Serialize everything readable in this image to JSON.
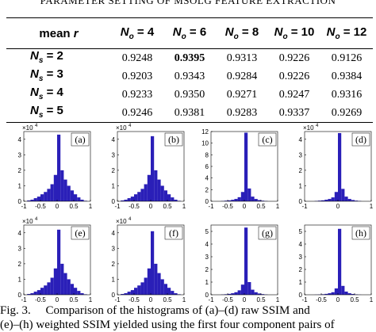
{
  "table": {
    "caption": "PARAMETER SETTING OF MSOLG FEATURE EXTRACTION",
    "corner": {
      "text": "mean",
      "var": "r"
    },
    "columns": [
      {
        "symbol": "N",
        "sub": "o",
        "rest": " = 4"
      },
      {
        "symbol": "N",
        "sub": "o",
        "rest": " = 6"
      },
      {
        "symbol": "N",
        "sub": "o",
        "rest": " = 8"
      },
      {
        "symbol": "N",
        "sub": "o",
        "rest": " = 10"
      },
      {
        "symbol": "N",
        "sub": "o",
        "rest": " = 12"
      }
    ],
    "rows": [
      {
        "symbol": "N",
        "sub": "s",
        "rest": " = 2",
        "values": [
          "0.9248",
          "0.9395",
          "0.9313",
          "0.9226",
          "0.9126"
        ]
      },
      {
        "symbol": "N",
        "sub": "s",
        "rest": " = 3",
        "values": [
          "0.9203",
          "0.9343",
          "0.9284",
          "0.9226",
          "0.9384"
        ]
      },
      {
        "symbol": "N",
        "sub": "s",
        "rest": " = 4",
        "values": [
          "0.9233",
          "0.9350",
          "0.9271",
          "0.9247",
          "0.9316"
        ]
      },
      {
        "symbol": "N",
        "sub": "s",
        "rest": " = 5",
        "values": [
          "0.9246",
          "0.9381",
          "0.9283",
          "0.9337",
          "0.9269"
        ]
      }
    ],
    "highlight": {
      "row": 0,
      "col": 1
    }
  },
  "figure": {
    "color": "#2a1fb8",
    "panels": [
      {
        "label": "(a)",
        "multiplier": {
          "base": "×10",
          "exp": "4"
        },
        "xlim": [
          -1,
          1
        ],
        "xticks": [
          -1,
          -0.5,
          0,
          0.5,
          1
        ],
        "ylim": [
          0,
          4.5
        ],
        "yticks": [
          0,
          1,
          2,
          3,
          4
        ],
        "bins": [
          -1,
          -0.9,
          -0.8,
          -0.7,
          -0.6,
          -0.5,
          -0.4,
          -0.3,
          -0.2,
          -0.1,
          0,
          0.1,
          0.2,
          0.3,
          0.4,
          0.5,
          0.6,
          0.7,
          0.8,
          0.9,
          1
        ],
        "counts": [
          0,
          0.05,
          0.1,
          0.2,
          0.3,
          0.45,
          0.6,
          0.8,
          1.1,
          1.7,
          4.3,
          2.0,
          1.4,
          1.0,
          0.7,
          0.45,
          0.25,
          0.1,
          0.03,
          0
        ]
      },
      {
        "label": "(b)",
        "multiplier": {
          "base": "×10",
          "exp": "4"
        },
        "xlim": [
          -1,
          1
        ],
        "xticks": [
          -1,
          -0.5,
          0,
          0.5,
          1
        ],
        "ylim": [
          0,
          4.5
        ],
        "yticks": [
          0,
          1,
          2,
          3,
          4
        ],
        "bins": [
          -1,
          -0.9,
          -0.8,
          -0.7,
          -0.6,
          -0.5,
          -0.4,
          -0.3,
          -0.2,
          -0.1,
          0,
          0.1,
          0.2,
          0.3,
          0.4,
          0.5,
          0.6,
          0.7,
          0.8,
          0.9,
          1
        ],
        "counts": [
          0,
          0.05,
          0.1,
          0.2,
          0.3,
          0.45,
          0.6,
          0.8,
          1.1,
          1.7,
          4.2,
          2.0,
          1.4,
          1.0,
          0.7,
          0.45,
          0.25,
          0.1,
          0.03,
          0
        ]
      },
      {
        "label": "(c)",
        "xlim": [
          -1,
          1
        ],
        "xticks": [
          -1,
          -0.5,
          0,
          0.5,
          1
        ],
        "ylim": [
          0,
          12
        ],
        "yticks": [
          0,
          2,
          4,
          6,
          8,
          10,
          12
        ],
        "bins": [
          -1,
          -0.9,
          -0.8,
          -0.7,
          -0.6,
          -0.5,
          -0.4,
          -0.3,
          -0.2,
          -0.1,
          0,
          0.1,
          0.2,
          0.3,
          0.4,
          0.5,
          0.6,
          0.7,
          0.8,
          0.9,
          1
        ],
        "counts": [
          0,
          0,
          0,
          0.05,
          0.1,
          0.15,
          0.25,
          0.4,
          0.7,
          1.6,
          11.8,
          2.2,
          0.8,
          0.4,
          0.2,
          0.1,
          0.05,
          0,
          0,
          0
        ]
      },
      {
        "label": "(d)",
        "multiplier": {
          "base": "×10",
          "exp": "4"
        },
        "xlim": [
          -1,
          1
        ],
        "xticks": [
          -1,
          0,
          1
        ],
        "ylim": [
          0,
          4.5
        ],
        "yticks": [
          0,
          1,
          2,
          3,
          4
        ],
        "bins": [
          -1,
          -0.9,
          -0.8,
          -0.7,
          -0.6,
          -0.5,
          -0.4,
          -0.3,
          -0.2,
          -0.1,
          0,
          0.1,
          0.2,
          0.3,
          0.4,
          0.5,
          0.6,
          0.7,
          0.8,
          0.9,
          1
        ],
        "counts": [
          0,
          0,
          0,
          0.02,
          0.04,
          0.06,
          0.1,
          0.15,
          0.25,
          0.6,
          4.4,
          0.8,
          0.3,
          0.15,
          0.08,
          0.04,
          0.02,
          0,
          0,
          0
        ]
      },
      {
        "label": "(e)",
        "multiplier": {
          "base": "×10",
          "exp": "4"
        },
        "xlim": [
          -1,
          1
        ],
        "xticks": [
          -1,
          -0.5,
          0,
          0.5,
          1
        ],
        "ylim": [
          0,
          4.5
        ],
        "yticks": [
          0,
          1,
          2,
          3,
          4
        ],
        "bins": [
          -1,
          -0.9,
          -0.8,
          -0.7,
          -0.6,
          -0.5,
          -0.4,
          -0.3,
          -0.2,
          -0.1,
          0,
          0.1,
          0.2,
          0.3,
          0.4,
          0.5,
          0.6,
          0.7,
          0.8,
          0.9,
          1
        ],
        "counts": [
          0,
          0.05,
          0.1,
          0.2,
          0.3,
          0.45,
          0.6,
          0.8,
          1.1,
          1.7,
          4.2,
          2.0,
          1.4,
          1.0,
          0.7,
          0.45,
          0.25,
          0.1,
          0.03,
          0
        ]
      },
      {
        "label": "(f)",
        "multiplier": {
          "base": "×10",
          "exp": "4"
        },
        "xlim": [
          -1,
          1
        ],
        "xticks": [
          -1,
          -0.5,
          0,
          0.5,
          1
        ],
        "ylim": [
          0,
          4.5
        ],
        "yticks": [
          0,
          1,
          2,
          3,
          4
        ],
        "bins": [
          -1,
          -0.9,
          -0.8,
          -0.7,
          -0.6,
          -0.5,
          -0.4,
          -0.3,
          -0.2,
          -0.1,
          0,
          0.1,
          0.2,
          0.3,
          0.4,
          0.5,
          0.6,
          0.7,
          0.8,
          0.9,
          1
        ],
        "counts": [
          0,
          0.05,
          0.1,
          0.2,
          0.3,
          0.45,
          0.6,
          0.8,
          1.1,
          1.7,
          4.1,
          2.0,
          1.4,
          1.0,
          0.7,
          0.45,
          0.25,
          0.1,
          0.03,
          0
        ]
      },
      {
        "label": "(g)",
        "xlim": [
          -1,
          1
        ],
        "xticks": [
          -1,
          -0.5,
          0,
          0.5,
          1
        ],
        "ylim": [
          0,
          5.5
        ],
        "yticks": [
          0,
          1,
          2,
          3,
          4,
          5
        ],
        "bins": [
          -1,
          -0.9,
          -0.8,
          -0.7,
          -0.6,
          -0.5,
          -0.4,
          -0.3,
          -0.2,
          -0.1,
          0,
          0.1,
          0.2,
          0.3,
          0.4,
          0.5,
          0.6,
          0.7,
          0.8,
          0.9,
          1
        ],
        "counts": [
          0,
          0,
          0,
          0.02,
          0.04,
          0.07,
          0.12,
          0.2,
          0.35,
          0.8,
          5.3,
          1.0,
          0.4,
          0.2,
          0.1,
          0.05,
          0.02,
          0,
          0,
          0
        ]
      },
      {
        "label": "(h)",
        "xlim": [
          -1,
          1
        ],
        "xticks": [
          -1,
          -0.5,
          0,
          0.5,
          1
        ],
        "ylim": [
          0,
          5.5
        ],
        "yticks": [
          0,
          1,
          2,
          3,
          4,
          5
        ],
        "bins": [
          -1,
          -0.9,
          -0.8,
          -0.7,
          -0.6,
          -0.5,
          -0.4,
          -0.3,
          -0.2,
          -0.1,
          0,
          0.1,
          0.2,
          0.3,
          0.4,
          0.5,
          0.6,
          0.7,
          0.8,
          0.9,
          1
        ],
        "counts": [
          0,
          0,
          0,
          0.01,
          0.02,
          0.04,
          0.07,
          0.12,
          0.2,
          0.5,
          5.2,
          0.7,
          0.25,
          0.12,
          0.06,
          0.03,
          0.01,
          0,
          0,
          0
        ]
      }
    ],
    "caption": [
      "Fig. 3.     Comparison of the histograms of (a)–(d) raw SSIM and",
      "(e)–(h) weighted SSIM yielded using the first four component pairs of"
    ]
  }
}
